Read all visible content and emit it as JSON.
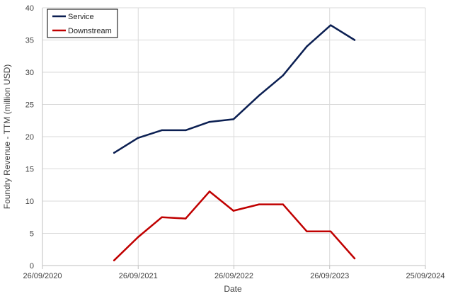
{
  "chart_data": {
    "type": "line",
    "xlabel": "Date",
    "ylabel": "Foundry Revenue - TTM (million USD)",
    "ylim": [
      0,
      40
    ],
    "yticks": [
      0,
      5,
      10,
      15,
      20,
      25,
      30,
      35,
      40
    ],
    "xlim": [
      "2020-09-26",
      "2024-09-25"
    ],
    "xticks": [
      "26/09/2020",
      "26/09/2021",
      "26/09/2022",
      "26/09/2023",
      "25/09/2024"
    ],
    "x": [
      "2021-06-26",
      "2021-09-25",
      "2021-12-25",
      "2022-03-26",
      "2022-06-25",
      "2022-09-24",
      "2022-12-31",
      "2023-04-01",
      "2023-07-01",
      "2023-09-30",
      "2023-12-30"
    ],
    "series": [
      {
        "name": "Service",
        "color": "#0b1f52",
        "values": [
          17.5,
          19.8,
          21.0,
          21.0,
          22.3,
          22.7,
          26.4,
          29.5,
          34.0,
          37.3,
          35.0
        ]
      },
      {
        "name": "Downstream",
        "color": "#c00000",
        "values": [
          0.8,
          4.4,
          7.5,
          7.3,
          11.5,
          8.5,
          9.5,
          9.5,
          5.3,
          5.3,
          1.1
        ]
      }
    ],
    "grid": true,
    "legend": "top-left"
  }
}
